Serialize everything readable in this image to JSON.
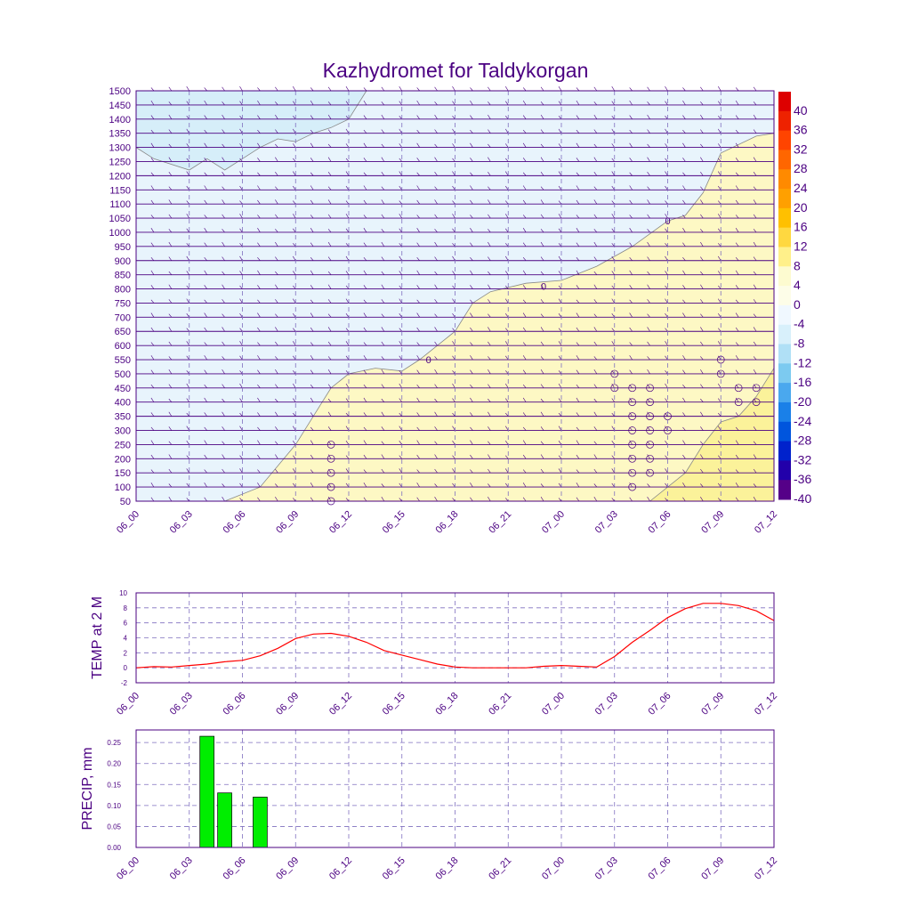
{
  "title": "Kazhydromet for Taldykorgan",
  "time_labels": [
    "06_00",
    "06_03",
    "06_06",
    "06_09",
    "06_12",
    "06_15",
    "06_18",
    "06_21",
    "07_00",
    "07_03",
    "07_06",
    "07_09",
    "07_12"
  ],
  "colors": {
    "accent": "#4b0082",
    "temp_line": "#ff0000",
    "precip_bar": "#00ee00",
    "warm_fill": "#fdf8c4",
    "warm_fill_strong": "#fbf29a",
    "cold_fill": "#e8f4fc",
    "cold_fill_strong": "#d6eef9"
  },
  "chart_data": [
    {
      "type": "heatmap",
      "title": "Kazhydromet for Taldykorgan",
      "xlabel": "",
      "ylabel": "",
      "x_ticks": [
        "06_00",
        "06_03",
        "06_06",
        "06_09",
        "06_12",
        "06_15",
        "06_18",
        "06_21",
        "07_00",
        "07_03",
        "07_06",
        "07_09",
        "07_12"
      ],
      "y_ticks": [
        50,
        100,
        150,
        200,
        250,
        300,
        350,
        400,
        450,
        500,
        550,
        600,
        650,
        700,
        750,
        800,
        850,
        900,
        950,
        1000,
        1050,
        1100,
        1150,
        1200,
        1250,
        1300,
        1350,
        1400,
        1450,
        1500
      ],
      "ylim": [
        50,
        1500
      ],
      "grid": true,
      "contour_labels": [
        "0",
        "0",
        "0"
      ],
      "colorbar_labels": [
        "40",
        "36",
        "32",
        "28",
        "24",
        "20",
        "16",
        "12",
        "8",
        "4",
        "0",
        "-4",
        "-8",
        "-12",
        "-16",
        "-20",
        "-24",
        "-28",
        "-32",
        "-36",
        "-40"
      ],
      "colorbar_colors": [
        "#dd0000",
        "#ee2200",
        "#ff4400",
        "#ff6600",
        "#ff8a00",
        "#ffa000",
        "#ffc000",
        "#ffd840",
        "#fff08a",
        "#fdfbd0",
        "#fdfde8",
        "#f0f8ff",
        "#d8f0fb",
        "#b0e0f6",
        "#7ccaf0",
        "#4aa8ee",
        "#1a80e8",
        "#0055dd",
        "#0022cc",
        "#2200aa",
        "#550088"
      ]
    },
    {
      "type": "line",
      "ylabel": "TEMP at 2 M",
      "ylim": [
        -2,
        10
      ],
      "y_ticks": [
        -2,
        0,
        2,
        4,
        6,
        8,
        10
      ],
      "x_ticks": [
        "06_00",
        "06_03",
        "06_06",
        "06_09",
        "06_12",
        "06_15",
        "06_18",
        "06_21",
        "07_00",
        "07_03",
        "07_06",
        "07_09",
        "07_12"
      ],
      "x_hours": [
        0,
        1,
        2,
        3,
        4,
        5,
        6,
        7,
        8,
        9,
        10,
        11,
        12,
        13,
        14,
        15,
        16,
        17,
        18,
        19,
        20,
        21,
        22,
        23,
        24,
        25,
        26,
        27,
        28,
        29,
        30,
        31,
        32,
        33,
        34,
        35,
        36
      ],
      "values": [
        0.0,
        0.15,
        0.1,
        0.3,
        0.5,
        0.8,
        1.0,
        1.6,
        2.6,
        3.9,
        4.5,
        4.6,
        4.2,
        3.4,
        2.3,
        1.7,
        1.1,
        0.5,
        0.1,
        0.0,
        0.0,
        0.0,
        0.0,
        0.2,
        0.3,
        0.2,
        0.1,
        1.5,
        3.4,
        5.0,
        6.7,
        7.9,
        8.6,
        8.6,
        8.3,
        7.6,
        6.3
      ],
      "grid": true
    },
    {
      "type": "bar",
      "ylabel": "PRECIP, mm",
      "ylim": [
        0,
        0.28
      ],
      "y_ticks": [
        "0.00",
        "0.05",
        "0.10",
        "0.15",
        "0.20",
        "0.25"
      ],
      "x_ticks": [
        "06_00",
        "06_03",
        "06_06",
        "06_09",
        "06_12",
        "06_15",
        "06_18",
        "06_21",
        "07_00",
        "07_03",
        "07_06",
        "07_09",
        "07_12"
      ],
      "bars": [
        {
          "hour": 4,
          "value": 0.265
        },
        {
          "hour": 5,
          "value": 0.13
        },
        {
          "hour": 7,
          "value": 0.12
        }
      ],
      "grid": true
    }
  ]
}
